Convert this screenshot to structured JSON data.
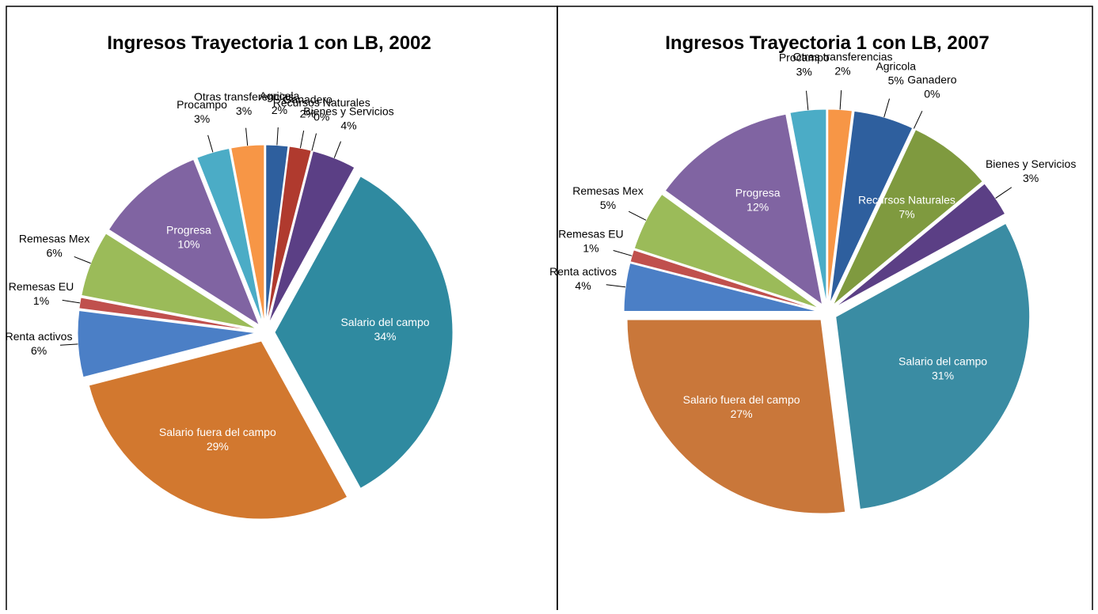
{
  "chart_data": [
    {
      "type": "pie",
      "title": "Ingresos Trayectoria 1 con LB, 2002",
      "categories": [
        "Agricola",
        "Ganadero",
        "Recursos Naturales",
        "Bienes y Servicios",
        "Salario del campo",
        "Salario fuera del campo",
        "Renta activos",
        "Remesas EU",
        "Remesas Mex",
        "Progresa",
        "Procampo",
        "Otras transferencias"
      ],
      "values": [
        2,
        2,
        0,
        4,
        34,
        29,
        6,
        1,
        6,
        10,
        3,
        3
      ],
      "value_labels": [
        "2%",
        "2%",
        "0%",
        "4%",
        "34%",
        "29%",
        "6%",
        "1%",
        "6%",
        "10%",
        "3%",
        "3%"
      ],
      "colors": [
        "#2e5f9e",
        "#b03a2e",
        "#7f9a3f",
        "#5b3f85",
        "#2f8aa0",
        "#d2782f",
        "#4b7fc6",
        "#c0504d",
        "#9bbb59",
        "#8064a2",
        "#4bacc6",
        "#f79646"
      ]
    },
    {
      "type": "pie",
      "title": "Ingresos Trayectoria 1 con LB, 2007",
      "categories": [
        "Otras transferencias",
        "Agricola",
        "Ganadero",
        "Recursos Naturales",
        "Bienes y Servicios",
        "Salario del campo",
        "Salario fuera del campo",
        "Renta activos",
        "Remesas EU",
        "Remesas Mex",
        "Progresa",
        "Procampo"
      ],
      "values": [
        2,
        5,
        0,
        7,
        3,
        31,
        27,
        4,
        1,
        5,
        12,
        3
      ],
      "value_labels": [
        "2%",
        "5%",
        "0%",
        "7%",
        "3%",
        "31%",
        "27%",
        "4%",
        "1%",
        "5%",
        "12%",
        "3%"
      ],
      "colors": [
        "#f79646",
        "#2e5f9e",
        "#b03a2e",
        "#7f9a3f",
        "#5b3f85",
        "#3a8ca3",
        "#c9773a",
        "#4b7fc6",
        "#c0504d",
        "#9bbb59",
        "#8064a2",
        "#4bacc6"
      ]
    }
  ]
}
